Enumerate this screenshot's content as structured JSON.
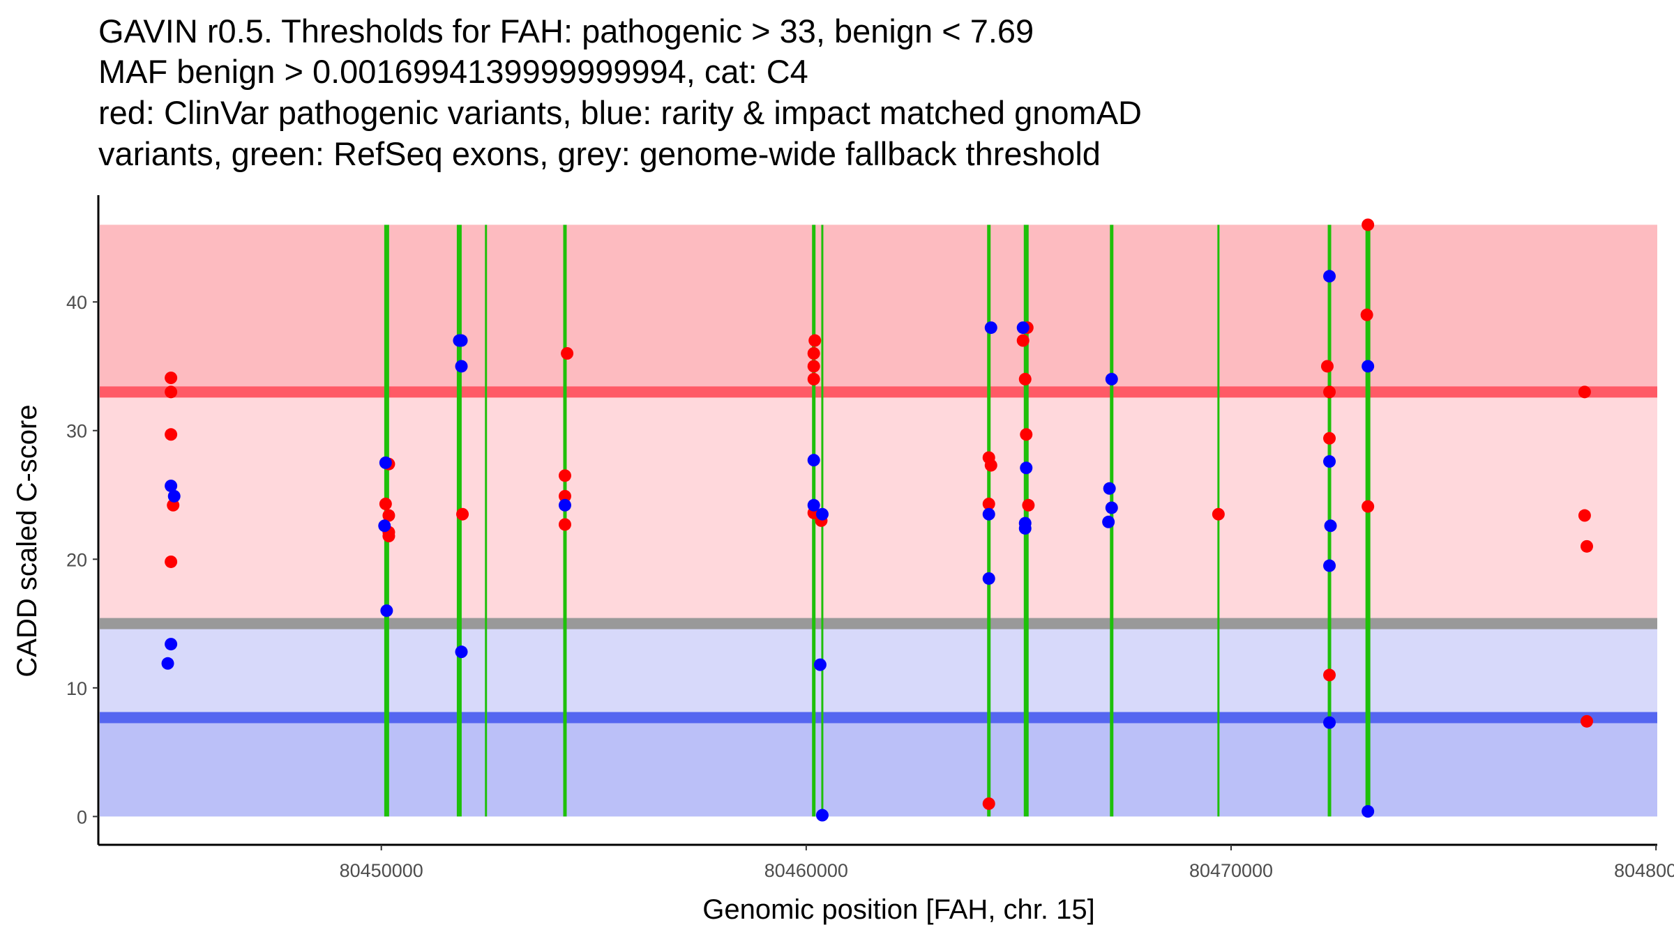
{
  "chart_data": {
    "type": "scatter",
    "title_lines": [
      "GAVIN r0.5. Thresholds for FAH: pathogenic > 33, benign < 7.69",
      "MAF benign > 0.0016994139999999994, cat: C4",
      "red: ClinVar pathogenic variants, blue: rarity & impact matched gnomAD",
      "variants, green: RefSeq exons, grey: genome-wide fallback threshold"
    ],
    "xlabel": "Genomic position [FAH, chr. 15]",
    "ylabel": "CADD scaled C-score",
    "xlim": [
      80443340,
      80480030
    ],
    "ylim": [
      -2.2,
      48.3
    ],
    "x_ticks": [
      80450000,
      80460000,
      80470000,
      80480000
    ],
    "x_tick_labels": [
      "80450000",
      "80460000",
      "80470000",
      "80480000"
    ],
    "y_ticks": [
      0,
      10,
      20,
      30,
      40
    ],
    "y_tick_labels": [
      "0",
      "10",
      "20",
      "30",
      "40"
    ],
    "grid": false,
    "thresholds": {
      "pathogenic": 33,
      "benign": 7.69,
      "genome_wide_fallback": 15,
      "band_top": 46
    },
    "colors": {
      "pathogenic_band": "#fdbbc0",
      "pathogenic_line": "#ff5a66",
      "mid_red_band": "#ffd8dc",
      "fallback_line": "#999999",
      "light_blue_band": "#d7d9fa",
      "benign_line": "#5566f0",
      "benign_band": "#bbc0f8",
      "exon": "#1ec00a",
      "clinvar": "#ff0000",
      "gnomad": "#0000ff"
    },
    "exons": [
      {
        "pos": 80450126,
        "width": "thick"
      },
      {
        "pos": 80451834,
        "width": "thick"
      },
      {
        "pos": 80452463,
        "width": "thin"
      },
      {
        "pos": 80454322,
        "width": "medium"
      },
      {
        "pos": 80460178,
        "width": "medium"
      },
      {
        "pos": 80460379,
        "width": "thin"
      },
      {
        "pos": 80464299,
        "width": "medium"
      },
      {
        "pos": 80465178,
        "width": "thick"
      },
      {
        "pos": 80467189,
        "width": "medium"
      },
      {
        "pos": 80469702,
        "width": "thin"
      },
      {
        "pos": 80472315,
        "width": "medium"
      },
      {
        "pos": 80473220,
        "width": "thick"
      }
    ],
    "series": [
      {
        "name": "ClinVar pathogenic",
        "color": "red",
        "points": [
          [
            80445049,
            34.1
          ],
          [
            80445049,
            33.0
          ],
          [
            80445049,
            29.7
          ],
          [
            80445100,
            24.2
          ],
          [
            80445049,
            19.8
          ],
          [
            80450176,
            27.4
          ],
          [
            80450101,
            24.3
          ],
          [
            80450176,
            23.4
          ],
          [
            80450176,
            22.1
          ],
          [
            80450176,
            21.8
          ],
          [
            80451910,
            23.5
          ],
          [
            80454373,
            36.0
          ],
          [
            80454322,
            26.5
          ],
          [
            80454322,
            24.9
          ],
          [
            80454322,
            22.7
          ],
          [
            80460203,
            37.0
          ],
          [
            80460178,
            36.0
          ],
          [
            80460178,
            35.0
          ],
          [
            80460178,
            34.0
          ],
          [
            80460178,
            23.6
          ],
          [
            80460354,
            23.0
          ],
          [
            80464299,
            27.9
          ],
          [
            80464349,
            27.3
          ],
          [
            80464299,
            24.3
          ],
          [
            80464299,
            1.0
          ],
          [
            80465203,
            38.0
          ],
          [
            80465103,
            37.0
          ],
          [
            80465153,
            34.0
          ],
          [
            80465178,
            29.7
          ],
          [
            80465229,
            24.2
          ],
          [
            80469702,
            23.5
          ],
          [
            80472265,
            35.0
          ],
          [
            80472315,
            33.0
          ],
          [
            80472315,
            29.4
          ],
          [
            80472315,
            11.0
          ],
          [
            80473220,
            46.0
          ],
          [
            80473195,
            39.0
          ],
          [
            80473220,
            24.1
          ],
          [
            80478321,
            33.0
          ],
          [
            80478321,
            23.4
          ],
          [
            80478372,
            21.0
          ],
          [
            80478372,
            7.4
          ]
        ]
      },
      {
        "name": "gnomAD rarity & impact matched",
        "color": "blue",
        "points": [
          [
            80445049,
            25.7
          ],
          [
            80445125,
            24.9
          ],
          [
            80445049,
            13.4
          ],
          [
            80444974,
            11.9
          ],
          [
            80450101,
            27.5
          ],
          [
            80450075,
            22.6
          ],
          [
            80450126,
            16.0
          ],
          [
            80451834,
            37.0
          ],
          [
            80451885,
            37.0
          ],
          [
            80451885,
            35.0
          ],
          [
            80451885,
            12.8
          ],
          [
            80454322,
            24.2
          ],
          [
            80460178,
            27.7
          ],
          [
            80460178,
            24.2
          ],
          [
            80460379,
            23.5
          ],
          [
            80460329,
            11.8
          ],
          [
            80460379,
            0.1
          ],
          [
            80464349,
            38.0
          ],
          [
            80464299,
            23.5
          ],
          [
            80464299,
            18.5
          ],
          [
            80465103,
            38.0
          ],
          [
            80465178,
            27.1
          ],
          [
            80465153,
            22.8
          ],
          [
            80465153,
            22.4
          ],
          [
            80467189,
            34.0
          ],
          [
            80467138,
            25.5
          ],
          [
            80467189,
            24.0
          ],
          [
            80467113,
            22.9
          ],
          [
            80472315,
            42.0
          ],
          [
            80472315,
            27.6
          ],
          [
            80472340,
            22.6
          ],
          [
            80472315,
            19.5
          ],
          [
            80472315,
            7.3
          ],
          [
            80473220,
            35.0
          ],
          [
            80473220,
            0.4
          ]
        ]
      }
    ]
  }
}
